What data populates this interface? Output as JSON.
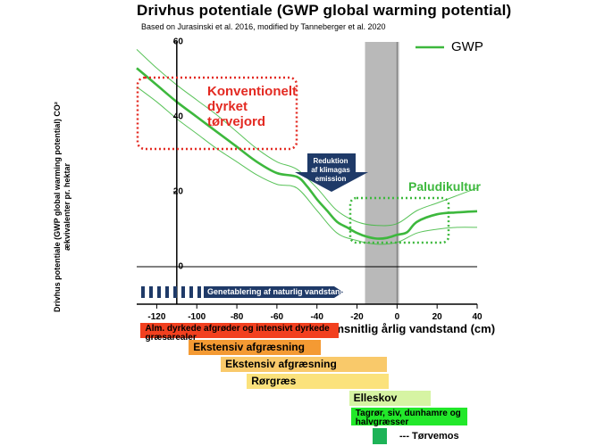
{
  "header": {
    "title": "Drivhus potentiale (GWP global warming potential)",
    "subtitle": "Based on Jurasinski et al. 2016, modified by Tanneberger et al. 2020"
  },
  "labels": {
    "konventionelt": "Konventionelt\ndyrket\ntørvejord",
    "paludikultur": "Paludikultur",
    "reduktion": "Reduktion\naf klimagas\nemission",
    "genetablering": "Genetablering af naturlig vandstand",
    "torvemos": "--- Tørvemos"
  },
  "colors": {
    "gwp": "#3db83d",
    "konv": "#e32a22",
    "palu": "#3db83d",
    "navy": "#1f3a68",
    "band": "#b9b9b9"
  },
  "vegetation": [
    {
      "label": "Alm. dyrkede afgrøder og intensivt dyrkede græsarealer",
      "range": [
        -128,
        -29
      ],
      "color": "#f2401f"
    },
    {
      "label": "Ekstensiv afgræsning",
      "range": [
        -104,
        -38
      ],
      "color": "#f49a33"
    },
    {
      "label": "Ekstensiv afgræsning",
      "range": [
        -88,
        -5
      ],
      "color": "#f9c96a"
    },
    {
      "label": "Rørgræs",
      "range": [
        -75,
        -4
      ],
      "color": "#fbe27c"
    },
    {
      "label": "Elleskov",
      "range": [
        -24,
        17
      ],
      "color": "#d6f4a3"
    },
    {
      "label": "Tagrør, siv, dunhamre og halvgræsser",
      "range": [
        -23,
        35
      ],
      "color": "#22e82a"
    },
    {
      "label": "",
      "range": [
        -12,
        -5
      ],
      "color": "#1db357"
    }
  ],
  "chart_data": {
    "type": "line",
    "title": "Drivhus potentiale (GWP global warming potential)",
    "xlabel": "Gennemsnitlig årlig vandstand (cm)",
    "ylabel": "Drivhus potentiale (GWP global warming potential) CO² ækvivalenter pr. hektar",
    "xlim": [
      -130,
      40
    ],
    "ylim": [
      -10,
      60
    ],
    "xticks": [
      -120,
      -100,
      -80,
      -60,
      -40,
      -20,
      0,
      20,
      40
    ],
    "yticks": [
      0,
      20,
      40,
      60
    ],
    "legend": {
      "position": "top-right",
      "entries": [
        "GWP"
      ]
    },
    "shaded_band": [
      -16,
      1
    ],
    "series": [
      {
        "name": "GWP",
        "x": [
          -130,
          -120,
          -110,
          -100,
          -90,
          -80,
          -70,
          -60,
          -50,
          -45,
          -40,
          -35,
          -30,
          -25,
          -20,
          -15,
          -10,
          -5,
          0,
          5,
          10,
          20,
          30,
          40
        ],
        "y": [
          53,
          48.5,
          44,
          40,
          36,
          32,
          28,
          25,
          24,
          21.5,
          18,
          15,
          12,
          10.5,
          9,
          8,
          7.5,
          7.7,
          8.5,
          9.2,
          12,
          14,
          14.5,
          14.8
        ]
      },
      {
        "name": "GWP upper bound",
        "x": [
          -130,
          -120,
          -110,
          -100,
          -90,
          -80,
          -70,
          -60,
          -50,
          -40,
          -30,
          -20,
          -10,
          0,
          10,
          20,
          30,
          40
        ],
        "y": [
          58,
          53,
          48.5,
          44.5,
          40.5,
          36,
          31.5,
          28,
          26,
          21,
          15,
          12,
          11,
          11.5,
          15,
          17,
          19,
          21
        ]
      },
      {
        "name": "GWP lower bound",
        "x": [
          -130,
          -120,
          -110,
          -100,
          -90,
          -80,
          -70,
          -60,
          -50,
          -40,
          -30,
          -20,
          -10,
          0,
          10,
          20,
          30,
          40
        ],
        "y": [
          48,
          44,
          39.5,
          35.5,
          31.5,
          28,
          24.5,
          22,
          21,
          15,
          9,
          7,
          6,
          6.5,
          9,
          10,
          10.5,
          10.5
        ]
      }
    ]
  }
}
